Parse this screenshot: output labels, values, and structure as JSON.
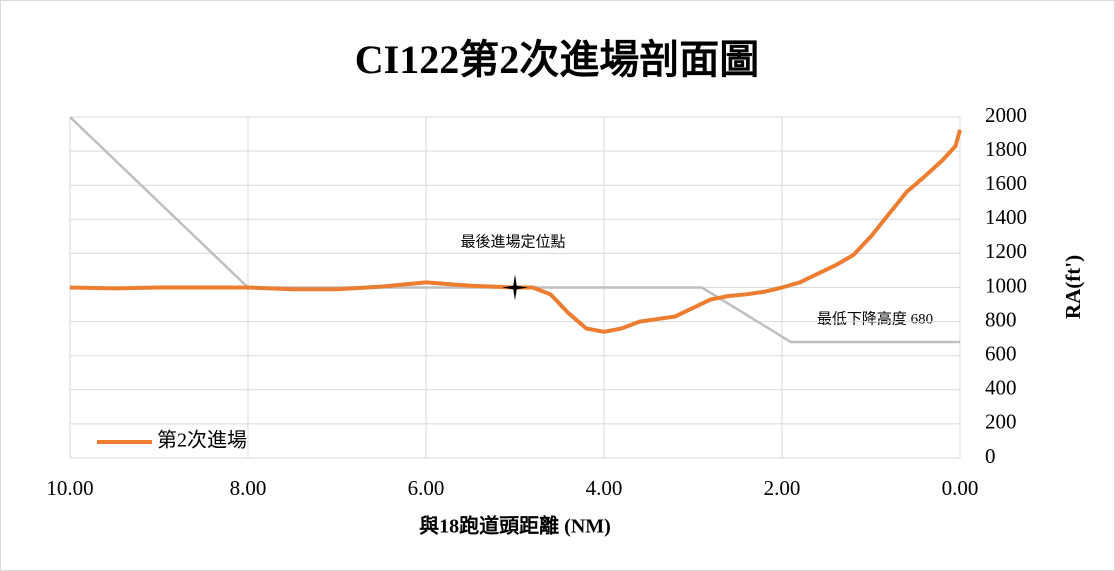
{
  "chart_data": {
    "type": "line",
    "title": "CI122第2次進場剖面圖",
    "x_label": "與18跑道頭距離 (NM)",
    "y_label": "RA(ft')",
    "xlim": [
      10,
      0
    ],
    "xticks": [
      {
        "value": 10,
        "label": "10.00"
      },
      {
        "value": 8,
        "label": "8.00"
      },
      {
        "value": 6,
        "label": "6.00"
      },
      {
        "value": 4,
        "label": "4.00"
      },
      {
        "value": 2,
        "label": "2.00"
      },
      {
        "value": 0,
        "label": "0.00"
      }
    ],
    "ylim": [
      0,
      2000
    ],
    "yticks": [
      0,
      200,
      400,
      600,
      800,
      1000,
      1200,
      1400,
      1600,
      1800,
      2000
    ],
    "grid": true,
    "legend": "bottom-left",
    "series": [
      {
        "name": "第2次進場",
        "color": "#ed7d31",
        "x": [
          10,
          9.5,
          9,
          8.5,
          8,
          7.5,
          7,
          6.5,
          6,
          5.5,
          5,
          4.8,
          4.6,
          4.4,
          4.2,
          4,
          3.8,
          3.6,
          3.4,
          3.2,
          3,
          2.8,
          2.6,
          2.4,
          2.2,
          2,
          1.8,
          1.6,
          1.4,
          1.2,
          1,
          0.8,
          0.6,
          0.4,
          0.2,
          0.05,
          0
        ],
        "values": [
          1000,
          995,
          1000,
          1000,
          1000,
          990,
          990,
          1005,
          1030,
          1010,
          1000,
          1000,
          960,
          850,
          760,
          740,
          760,
          800,
          815,
          830,
          880,
          930,
          950,
          960,
          975,
          1000,
          1030,
          1080,
          1130,
          1190,
          1300,
          1430,
          1560,
          1650,
          1745,
          1830,
          1925
        ]
      },
      {
        "color": "#bfbfbf",
        "x": [
          10,
          8,
          2.9,
          1.9,
          0
        ],
        "values": [
          2000,
          1000,
          1000,
          680,
          680
        ]
      }
    ],
    "marker": {
      "x": 5,
      "y": 1000
    },
    "annotations": [
      "最後進場定位點",
      "最低下降高度 680"
    ]
  }
}
